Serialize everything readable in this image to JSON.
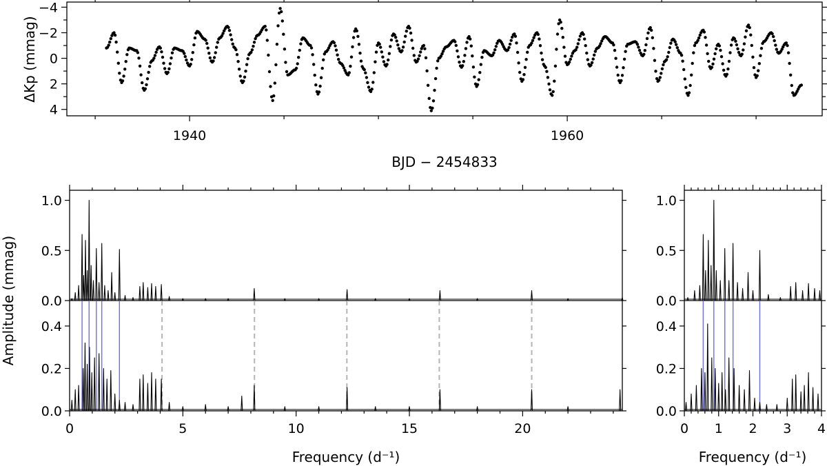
{
  "chart_data": [
    {
      "type": "scatter",
      "panel": "light-curve",
      "title": "",
      "xlabel": "BJD − 2454833",
      "ylabel": "ΔKp (mmag)",
      "xlim": [
        1933.5,
        1973.5
      ],
      "ylim": [
        4.5,
        -4.4
      ],
      "y_inverted": true,
      "x_ticks": [
        1940,
        1960
      ],
      "y_ticks": [
        -4,
        -2,
        0,
        2,
        4
      ],
      "y_tick_labels": [
        "−4",
        "−2",
        "0",
        "2",
        "4"
      ],
      "x": [
        1935.6,
        1936.0,
        1936.4,
        1936.8,
        1937.2,
        1937.6,
        1938.0,
        1938.4,
        1938.8,
        1939.2,
        1939.6,
        1940.0,
        1940.4,
        1940.8,
        1941.2,
        1941.6,
        1942.0,
        1942.4,
        1942.8,
        1943.2,
        1943.6,
        1944.0,
        1944.4,
        1944.8,
        1945.2,
        1945.6,
        1946.0,
        1946.4,
        1946.8,
        1947.2,
        1947.6,
        1948.0,
        1948.4,
        1948.8,
        1949.2,
        1949.6,
        1950.0,
        1950.4,
        1950.8,
        1951.2,
        1951.6,
        1952.0,
        1952.4,
        1952.8,
        1953.2,
        1953.6,
        1954.0,
        1954.4,
        1954.8,
        1955.2,
        1955.6,
        1956.0,
        1956.4,
        1956.8,
        1957.2,
        1957.6,
        1958.0,
        1958.4,
        1958.8,
        1959.2,
        1959.6,
        1960.0,
        1960.4,
        1960.8,
        1961.2,
        1961.6,
        1962.0,
        1962.4,
        1962.8,
        1963.2,
        1963.6,
        1964.0,
        1964.4,
        1964.8,
        1965.2,
        1965.6,
        1966.0,
        1966.4,
        1966.8,
        1967.2,
        1967.6,
        1968.0,
        1968.4,
        1968.8,
        1969.2,
        1969.6,
        1970.0,
        1970.4,
        1970.8,
        1971.2,
        1971.6,
        1972.0,
        1972.4
      ],
      "y": [
        -0.8,
        -2.0,
        1.9,
        -0.8,
        -0.6,
        2.5,
        0.2,
        -0.9,
        1.2,
        -0.8,
        -0.6,
        0.6,
        -2.1,
        -1.5,
        0.3,
        -1.6,
        -2.5,
        -0.8,
        1.9,
        -0.4,
        -1.8,
        -2.5,
        3.3,
        -3.9,
        1.3,
        0.9,
        -1.6,
        -1.0,
        2.8,
        -0.5,
        -1.3,
        0.4,
        1.3,
        -2.3,
        0.8,
        2.6,
        -1.2,
        0.6,
        -1.9,
        -0.5,
        -2.5,
        0.3,
        -1.0,
        4.1,
        0.0,
        -0.9,
        -1.4,
        0.7,
        -1.7,
        2.2,
        -0.6,
        -0.2,
        -1.4,
        -0.6,
        -1.9,
        1.8,
        -1.0,
        -2.0,
        0.6,
        2.9,
        -3.0,
        0.5,
        -0.6,
        -2.0,
        0.6,
        -0.8,
        -1.7,
        -1.2,
        1.9,
        -1.1,
        -1.3,
        -0.2,
        -2.4,
        1.8,
        0.2,
        -1.5,
        -0.4,
        2.9,
        -1.2,
        -2.2,
        0.8,
        -1.1,
        1.4,
        -1.6,
        -0.2,
        -2.6,
        1.5,
        -1.3,
        -2.0,
        -0.4,
        -1.2,
        2.9,
        2.1
      ]
    },
    {
      "type": "line",
      "panel": "periodogram-top-full",
      "xlabel": "",
      "ylabel": "Amplitude (mmag)",
      "xlim": [
        0,
        24.4
      ],
      "ylim": [
        0,
        1.1
      ],
      "y_ticks": [
        0.0,
        0.5,
        1.0
      ],
      "x": [
        0.1,
        0.25,
        0.4,
        0.55,
        0.62,
        0.7,
        0.78,
        0.86,
        0.95,
        1.05,
        1.18,
        1.3,
        1.42,
        1.55,
        1.7,
        1.86,
        2.0,
        2.2,
        2.45,
        2.8,
        3.1,
        3.25,
        3.45,
        3.62,
        3.8,
        4.05,
        4.4,
        5.0,
        6.0,
        7.0,
        8.15,
        9.5,
        11.0,
        12.25,
        13.5,
        15.0,
        16.35,
        18.0,
        20.4,
        22.0,
        24.4
      ],
      "y": [
        0.02,
        0.08,
        0.15,
        0.66,
        0.25,
        0.6,
        0.3,
        1.0,
        0.35,
        0.2,
        0.52,
        0.18,
        0.57,
        0.15,
        0.1,
        0.28,
        0.08,
        0.51,
        0.05,
        0.03,
        0.14,
        0.18,
        0.13,
        0.17,
        0.14,
        0.16,
        0.04,
        0.02,
        0.02,
        0.02,
        0.12,
        0.02,
        0.02,
        0.11,
        0.02,
        0.02,
        0.1,
        0.02,
        0.1,
        0.02,
        0.03
      ]
    },
    {
      "type": "line",
      "panel": "periodogram-bottom-full",
      "xlabel": "Frequency (d⁻¹)",
      "ylabel": "Amplitude (mmag)",
      "xlim": [
        0,
        24.4
      ],
      "ylim": [
        0,
        0.52
      ],
      "x_ticks": [
        0,
        5,
        10,
        15,
        20
      ],
      "y_ticks": [
        0.0,
        0.2,
        0.4
      ],
      "x": [
        0.1,
        0.25,
        0.4,
        0.6,
        0.68,
        0.78,
        0.88,
        0.98,
        1.1,
        1.3,
        1.5,
        1.65,
        1.82,
        2.0,
        2.2,
        2.45,
        2.8,
        3.1,
        3.25,
        3.45,
        3.62,
        3.8,
        4.05,
        4.4,
        5.0,
        6.0,
        7.0,
        7.6,
        8.15,
        9.5,
        11.0,
        12.25,
        13.5,
        15.0,
        16.35,
        18.0,
        20.4,
        22.0,
        24.3
      ],
      "y": [
        0.05,
        0.1,
        0.12,
        0.2,
        0.32,
        0.22,
        0.3,
        0.18,
        0.25,
        0.27,
        0.2,
        0.15,
        0.19,
        0.08,
        0.05,
        0.04,
        0.03,
        0.15,
        0.17,
        0.13,
        0.18,
        0.15,
        0.15,
        0.04,
        0.02,
        0.03,
        0.02,
        0.07,
        0.12,
        0.02,
        0.02,
        0.11,
        0.02,
        0.02,
        0.1,
        0.02,
        0.1,
        0.02,
        0.1
      ]
    },
    {
      "type": "line",
      "panel": "periodogram-top-zoom",
      "xlabel": "",
      "xlim": [
        0,
        4
      ],
      "ylim": [
        0,
        1.1
      ],
      "y_ticks": [
        0.0,
        0.5,
        1.0
      ],
      "x": [
        0.1,
        0.3,
        0.45,
        0.55,
        0.62,
        0.7,
        0.78,
        0.86,
        0.93,
        1.05,
        1.18,
        1.3,
        1.42,
        1.55,
        1.7,
        1.86,
        2.0,
        2.2,
        2.45,
        2.8,
        3.1,
        3.25,
        3.45,
        3.62,
        3.8,
        3.95
      ],
      "y": [
        0.03,
        0.1,
        0.15,
        0.66,
        0.3,
        0.6,
        0.35,
        1.0,
        0.3,
        0.2,
        0.52,
        0.2,
        0.57,
        0.18,
        0.12,
        0.28,
        0.1,
        0.5,
        0.06,
        0.03,
        0.14,
        0.18,
        0.1,
        0.17,
        0.12,
        0.1
      ]
    },
    {
      "type": "line",
      "panel": "periodogram-bottom-zoom",
      "xlabel": "Frequency (d⁻¹)",
      "xlim": [
        0,
        4
      ],
      "ylim": [
        0,
        0.52
      ],
      "x_ticks": [
        0,
        1,
        2,
        3,
        4
      ],
      "y_ticks": [
        0.0,
        0.2,
        0.4
      ],
      "x": [
        0.05,
        0.2,
        0.35,
        0.5,
        0.6,
        0.68,
        0.8,
        0.9,
        1.0,
        1.1,
        1.2,
        1.3,
        1.45,
        1.6,
        1.75,
        1.9,
        2.05,
        2.2,
        2.4,
        2.7,
        3.0,
        3.15,
        3.25,
        3.4,
        3.5,
        3.62,
        3.75,
        3.9
      ],
      "y": [
        0.04,
        0.08,
        0.12,
        0.2,
        0.18,
        0.41,
        0.25,
        0.2,
        0.13,
        0.18,
        0.1,
        0.25,
        0.2,
        0.12,
        0.1,
        0.19,
        0.06,
        0.04,
        0.03,
        0.03,
        0.06,
        0.15,
        0.17,
        0.09,
        0.12,
        0.18,
        0.11,
        0.08
      ]
    }
  ],
  "markers": {
    "frequencies": [
      0.55,
      0.86,
      1.18,
      1.42,
      2.2
    ],
    "harmonics": [
      4.08,
      8.16,
      12.24,
      16.32,
      20.4
    ]
  },
  "colors": {
    "frequency_line": "#6e6ee6",
    "harmonic_line": "#b4b4b4",
    "trace": "#000000"
  }
}
